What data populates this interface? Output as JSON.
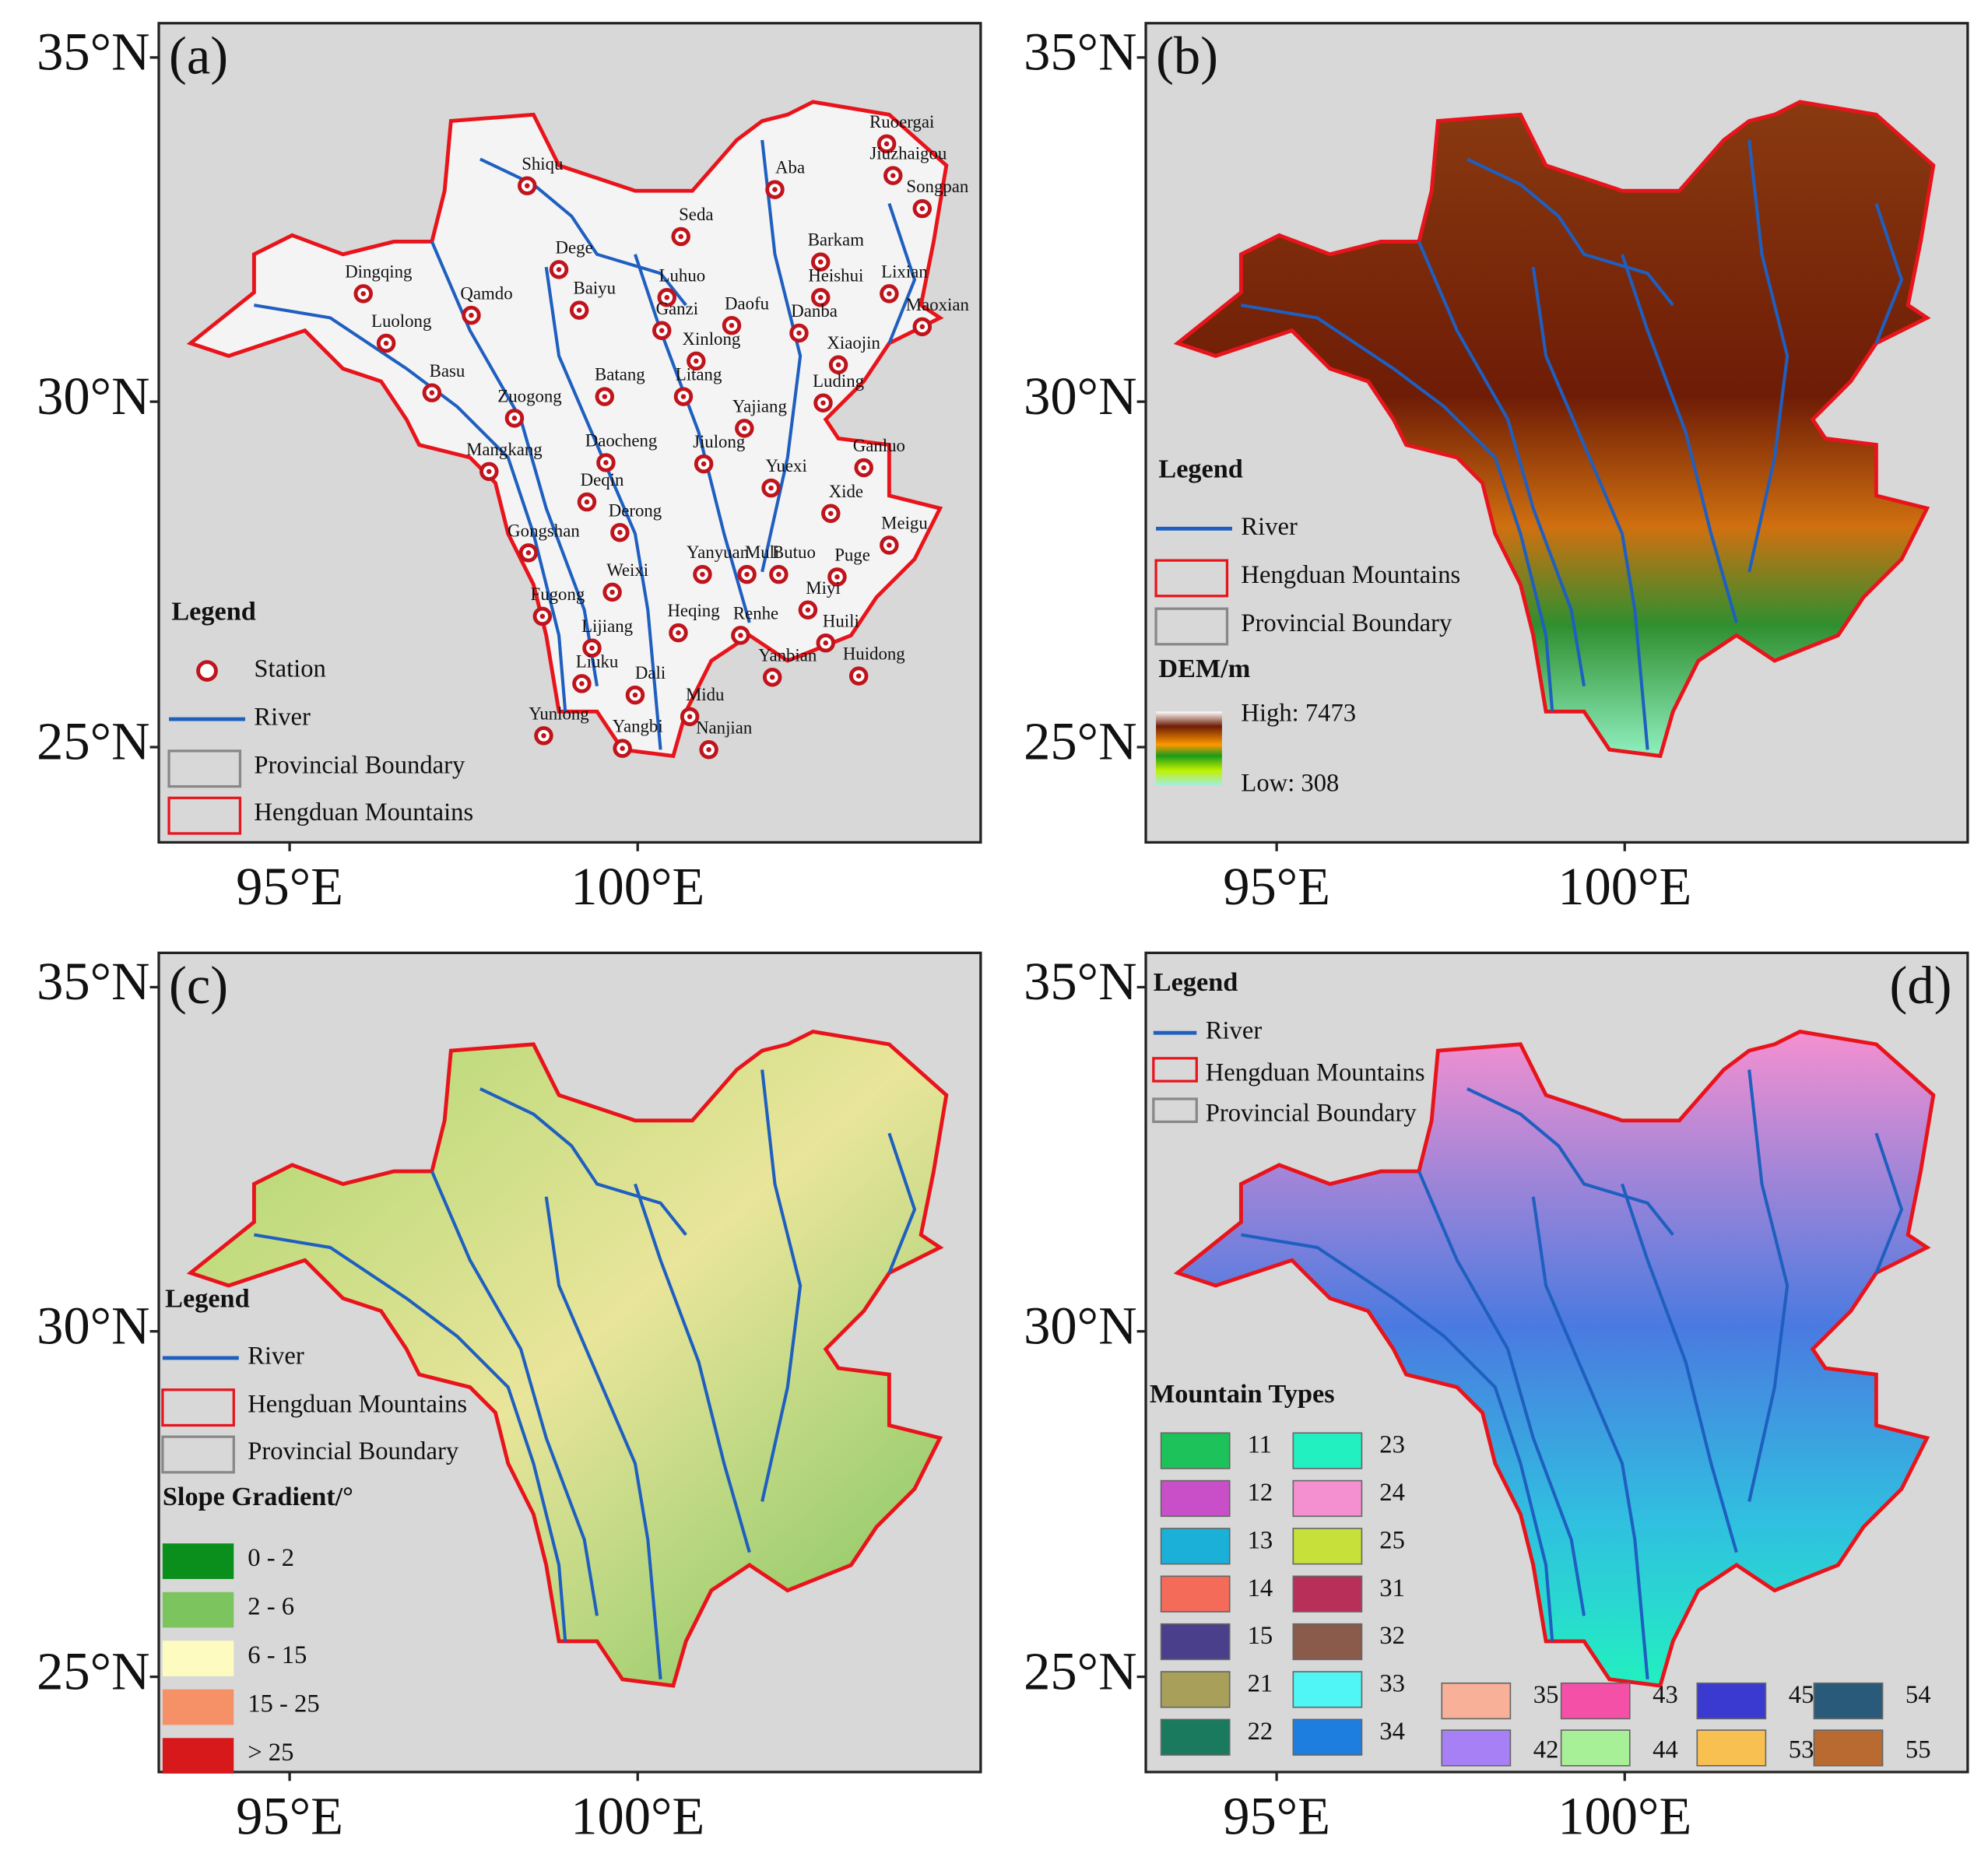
{
  "lat_labels": [
    "35°N",
    "30°N",
    "25°N"
  ],
  "lon_labels": [
    "95°E",
    "100°E"
  ],
  "panels": [
    {
      "label": "(a)",
      "legend": {
        "title": "Legend",
        "station": "Station",
        "river": "River",
        "boundary": "Provincial Boundary",
        "mountains": "Hengduan Mountains"
      },
      "stations": [
        "Ruoergai",
        "Jiuzhaigou",
        "Aba",
        "Songpan",
        "Shiqu",
        "Seda",
        "Barkam",
        "Dege",
        "Lixian",
        "Dingqing",
        "Luhuo",
        "Heishui",
        "Qamdo",
        "Baiyu",
        "Ganzi",
        "Daofu",
        "Danba",
        "Maoxian",
        "Luolong",
        "Xinlong",
        "Xiaojin",
        "Basu",
        "Batang",
        "Litang",
        "Luding",
        "Zuogong",
        "Yajiang",
        "Mangkang",
        "Daocheng",
        "Jiulong",
        "Ganluo",
        "Deqin",
        "Yuexi",
        "Xide",
        "Derong",
        "Meigu",
        "Gongshan",
        "Muli",
        "Yanyuan",
        "Butuo",
        "Puge",
        "Weixi",
        "Miyi",
        "Fugong",
        "Heqing",
        "Renhe",
        "Huili",
        "Lijiang",
        "Yanbian",
        "Huidong",
        "Liuku",
        "Dali",
        "Midu",
        "Yunlong",
        "Yangbi",
        "Nanjian"
      ]
    },
    {
      "label": "(b)",
      "legend": {
        "title": "Legend",
        "river": "River",
        "mountains": "Hengduan Mountains",
        "boundary": "Provincial Boundary",
        "dem_title": "DEM/m",
        "high": "High: 7473",
        "low": "Low: 308"
      }
    },
    {
      "label": "(c)",
      "legend": {
        "title": "Legend",
        "river": "River",
        "mountains": "Hengduan Mountains",
        "boundary": "Provincial Boundary",
        "slope_title": "Slope Gradient/°",
        "classes": [
          {
            "label": "0 - 2",
            "color": "#0a8f1c"
          },
          {
            "label": "2 - 6",
            "color": "#7cc45e"
          },
          {
            "label": "6 - 15",
            "color": "#fdfbbf"
          },
          {
            "label": "15 - 25",
            "color": "#f69066"
          },
          {
            "label": "> 25",
            "color": "#d7191c"
          }
        ]
      }
    },
    {
      "label": "(d)",
      "legend": {
        "title": "Legend",
        "river": "River",
        "mountains": "Hengduan Mountains",
        "boundary": "Provincial Boundary",
        "types_title": "Mountain Types",
        "types": [
          {
            "label": "11",
            "color": "#1ec25a"
          },
          {
            "label": "12",
            "color": "#c84fc8"
          },
          {
            "label": "13",
            "color": "#1ab0d8"
          },
          {
            "label": "14",
            "color": "#f56b5a"
          },
          {
            "label": "15",
            "color": "#4a3f8a"
          },
          {
            "label": "21",
            "color": "#a89f5a"
          },
          {
            "label": "22",
            "color": "#1a7a5e"
          },
          {
            "label": "23",
            "color": "#22f0c0"
          },
          {
            "label": "24",
            "color": "#f590d0"
          },
          {
            "label": "25",
            "color": "#c8e03a"
          },
          {
            "label": "31",
            "color": "#b8305a"
          },
          {
            "label": "32",
            "color": "#8a5a4a"
          },
          {
            "label": "33",
            "color": "#50f5f5"
          },
          {
            "label": "34",
            "color": "#1e7ee0"
          },
          {
            "label": "35",
            "color": "#f8b098"
          },
          {
            "label": "42",
            "color": "#a880f5"
          },
          {
            "label": "43",
            "color": "#f550a8"
          },
          {
            "label": "44",
            "color": "#a8f098"
          },
          {
            "label": "45",
            "color": "#3a3ad0"
          },
          {
            "label": "53",
            "color": "#f8c050"
          },
          {
            "label": "54",
            "color": "#2a5a7a"
          },
          {
            "label": "55",
            "color": "#b86a30"
          }
        ]
      }
    }
  ]
}
